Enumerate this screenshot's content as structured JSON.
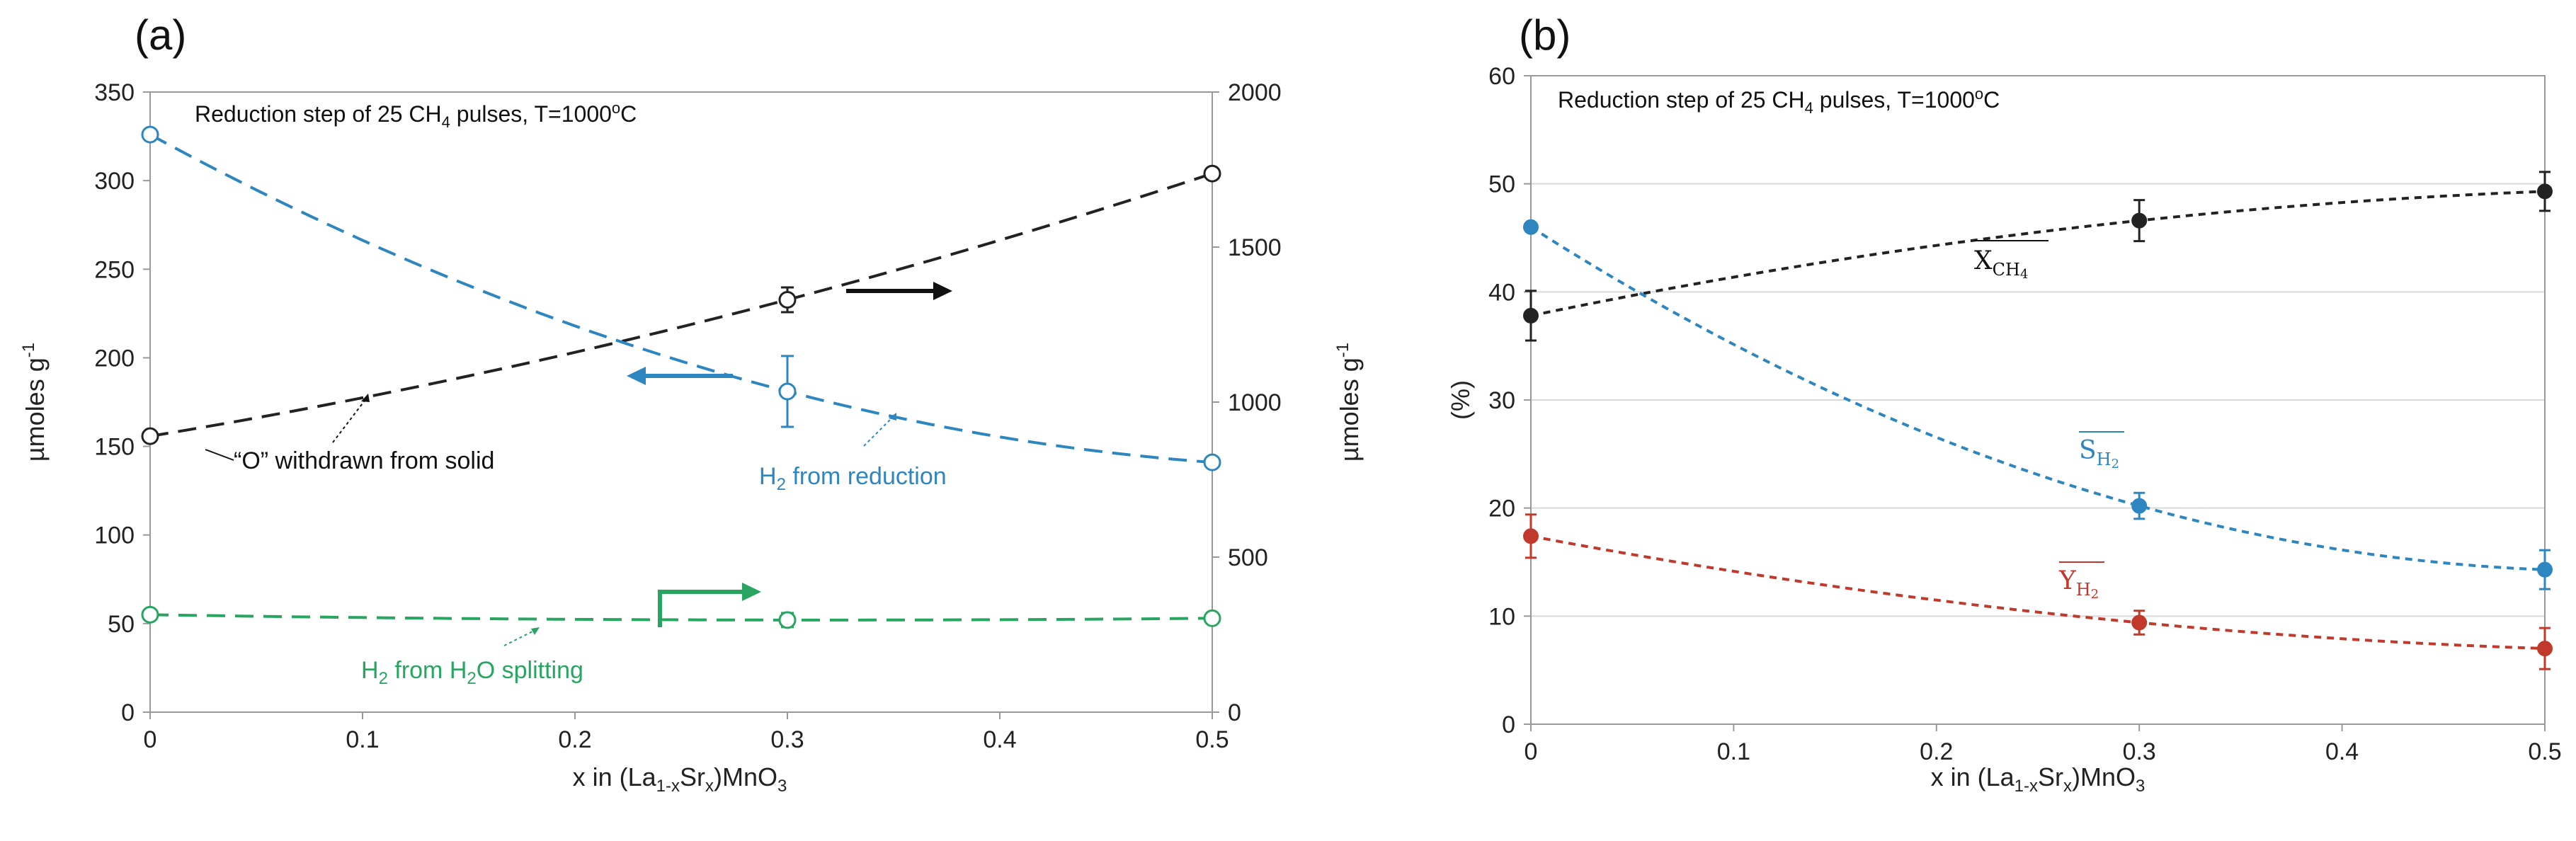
{
  "chart_data": [
    {
      "panel_label": "(a)",
      "type": "line",
      "title": "Reduction step of 25 CH4 pulses, T=1000oC",
      "title_parts": {
        "pre": "Reduction step of 25 CH",
        "sub": "4",
        "mid": " pulses, T=1000",
        "sup": "o",
        "post": "C"
      },
      "xlabel_parts": {
        "pre": "x in (La",
        "sub1": "1-x",
        "mid": "Sr",
        "sub2": "x",
        "post": ")MnO",
        "sub3": "3"
      },
      "ylabel_left": "µmoles g-1",
      "ylabel_right": "µmoles g-1",
      "ylabel_base": "µmoles g",
      "ylabel_sup": "-1",
      "xlim": [
        0,
        0.5
      ],
      "ylim_left": [
        0,
        350
      ],
      "ylim_right": [
        0,
        2000
      ],
      "x_ticks": [
        "0",
        "0.1",
        "0.2",
        "0.3",
        "0.4",
        "0.5"
      ],
      "y_ticks_left": [
        "0",
        "50",
        "100",
        "150",
        "200",
        "250",
        "300",
        "350"
      ],
      "y_ticks_right": [
        "0",
        "500",
        "1000",
        "1500",
        "2000"
      ],
      "series": [
        {
          "name": "“O” withdrawn from solid",
          "axis": "right",
          "color": "#222222",
          "x": [
            0,
            0.3,
            0.5
          ],
          "y": [
            890,
            1330,
            1737
          ],
          "err": [
            0,
            40,
            0
          ]
        },
        {
          "name": "H2 from reduction",
          "axis": "left",
          "color": "#2e86c1",
          "x": [
            0,
            0.3,
            0.5
          ],
          "y": [
            326,
            181,
            141
          ],
          "err": [
            0,
            20,
            0
          ]
        },
        {
          "name": "H2 from H2O splitting",
          "axis": "left",
          "color": "#27a561",
          "x": [
            0,
            0.3,
            0.5
          ],
          "y": [
            55,
            52,
            53
          ],
          "err": [
            0,
            4,
            0
          ]
        }
      ],
      "annotations": {
        "o_label": "“O” withdrawn from solid",
        "h2_red": {
          "pre": "H",
          "sub": "2",
          "post": " from reduction"
        },
        "h2_split": {
          "pre": "H",
          "sub1": "2",
          "mid": " from H",
          "sub2": "2",
          "post": "O splitting"
        }
      }
    },
    {
      "panel_label": "(b)",
      "type": "line",
      "title": "Reduction step of 25 CH4 pulses, T=1000oC",
      "title_parts": {
        "pre": "Reduction step of 25 CH",
        "sub": "4",
        "mid": " pulses, T=1000",
        "sup": "o",
        "post": "C"
      },
      "xlabel_parts": {
        "pre": "x in (La",
        "sub1": "1-x",
        "mid": "Sr",
        "sub2": "x",
        "post": ")MnO",
        "sub3": "3"
      },
      "ylabel": "(%)",
      "xlim": [
        0,
        0.5
      ],
      "ylim": [
        0,
        60
      ],
      "x_ticks": [
        "0",
        "0.1",
        "0.2",
        "0.3",
        "0.4",
        "0.5"
      ],
      "y_ticks": [
        "0",
        "10",
        "20",
        "30",
        "40",
        "50",
        "60"
      ],
      "series": [
        {
          "name": "XCH4",
          "label_main": "X",
          "label_sub": "CH",
          "label_sub2": "4",
          "color": "#222222",
          "x": [
            0,
            0.3,
            0.5
          ],
          "y": [
            37.8,
            46.6,
            49.3
          ],
          "err": [
            2.3,
            1.9,
            1.8
          ]
        },
        {
          "name": "SH2",
          "label_main": "S",
          "label_sub": "H",
          "label_sub2": "2",
          "color": "#2e86c1",
          "x": [
            0,
            0.3,
            0.5
          ],
          "y": [
            46.0,
            20.2,
            14.3
          ],
          "err": [
            0,
            1.2,
            1.8
          ]
        },
        {
          "name": "YH2",
          "label_main": "Y",
          "label_sub": "H",
          "label_sub2": "2",
          "color": "#c0392b",
          "x": [
            0,
            0.3,
            0.5
          ],
          "y": [
            17.4,
            9.4,
            7.0
          ],
          "err": [
            2.0,
            1.1,
            1.9
          ]
        }
      ]
    }
  ]
}
